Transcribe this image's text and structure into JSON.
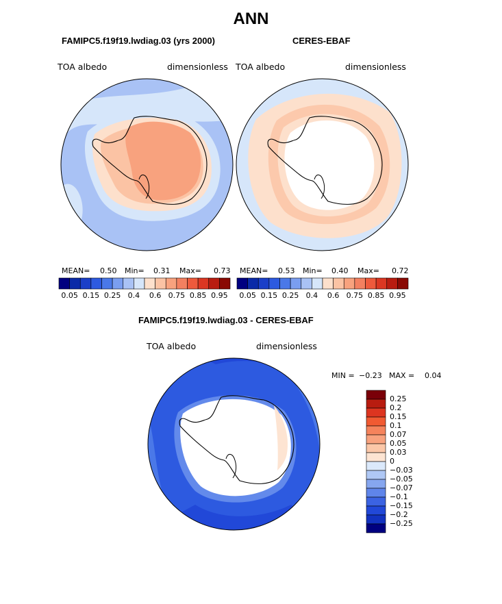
{
  "title": "ANN",
  "panels": [
    {
      "subtitle": "FAMIPC5.f19f19.lwdiag.03 (yrs 2000)",
      "variable": "TOA albedo",
      "units": "dimensionless",
      "stats": {
        "mean_label": "MEAN=",
        "mean": "0.50",
        "min_label": "Min=",
        "min": "0.31",
        "max_label": "Max=",
        "max": "0.73"
      }
    },
    {
      "subtitle": "CERES-EBAF",
      "variable": "TOA albedo",
      "units": "dimensionless",
      "stats": {
        "mean_label": "MEAN=",
        "mean": "0.53",
        "min_label": "Min=",
        "min": "0.40",
        "max_label": "Max=",
        "max": "0.72"
      }
    },
    {
      "subtitle": "FAMIPC5.f19f19.lwdiag.03 - CERES-EBAF",
      "variable": "TOA albedo",
      "units": "dimensionless",
      "stats": {
        "min_label": "MIN =",
        "min": "−0.23",
        "max_label": "MAX =",
        "max": "0.04"
      }
    }
  ],
  "colorbar_abs": {
    "colors": [
      "#000080",
      "#0a2aa8",
      "#1a3fc8",
      "#2d5ae0",
      "#4a78e8",
      "#7a9ef0",
      "#a9c2f5",
      "#d6e6fa",
      "#fde0cc",
      "#fbc3a4",
      "#f8a27e",
      "#f38060",
      "#ee5a3c",
      "#db3722",
      "#b81c10",
      "#8a0a04"
    ],
    "tick_labels": [
      "0.05",
      "0.15",
      "0.25",
      "0.4",
      "0.6",
      "0.75",
      "0.85",
      "0.95"
    ]
  },
  "colorbar_diff": {
    "colors": [
      "#7a0008",
      "#b81c10",
      "#dd3520",
      "#f15a32",
      "#f5835c",
      "#f8a27e",
      "#fbc7a8",
      "#fde4d2",
      "#dbe9fb",
      "#afc8f5",
      "#86a6ef",
      "#5f85ea",
      "#3b63e2",
      "#2148d8",
      "#1232c0",
      "#000080"
    ],
    "tick_labels": [
      "0.25",
      "0.2",
      "0.15",
      "0.1",
      "0.07",
      "0.05",
      "0.03",
      "0",
      "−0.03",
      "−0.05",
      "−0.07",
      "−0.1",
      "−0.15",
      "−0.2",
      "−0.25"
    ]
  }
}
